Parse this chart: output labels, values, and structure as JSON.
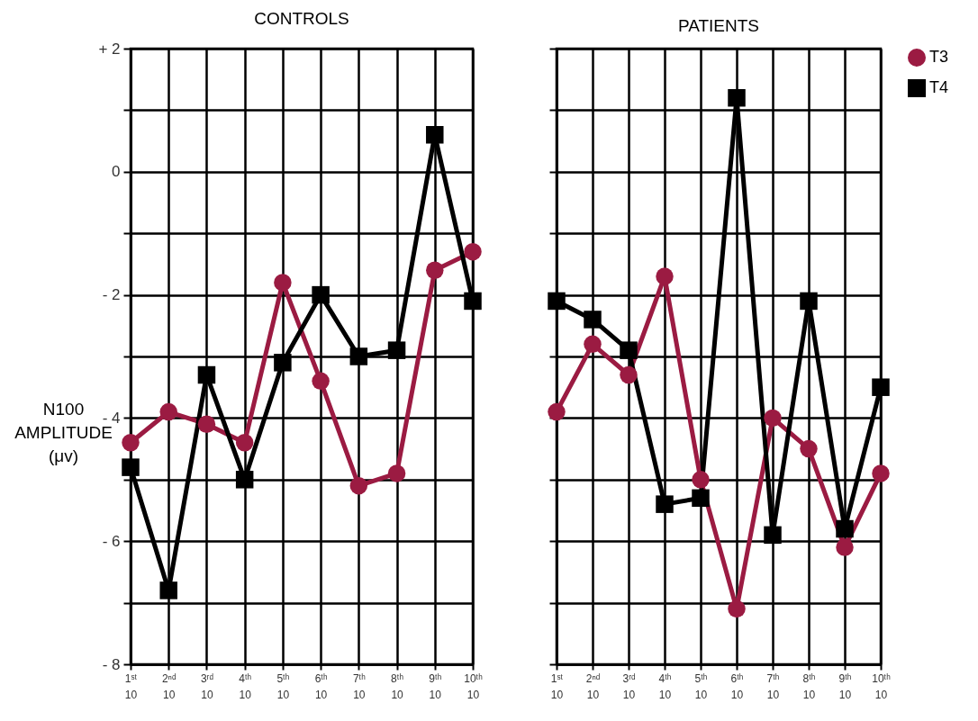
{
  "chart_data": [
    {
      "type": "line",
      "title": "CONTROLS",
      "ylabel": "N100 AMPLITUDE (μv)",
      "categories": [
        "1ˢᵗ 10",
        "2ⁿᵈ 10",
        "3ʳᵈ 10",
        "4ᵗʰ 10",
        "5ᵗʰ 10",
        "6ᵗʰ 10",
        "7ᵗʰ 10",
        "8ᵗʰ 10",
        "9ᵗʰ 10",
        "10ᵗʰ 10"
      ],
      "series": [
        {
          "name": "T3",
          "color": "#9b1b42",
          "marker": "circle",
          "values": [
            -4.4,
            -3.9,
            -4.1,
            -4.4,
            -1.8,
            -3.4,
            -5.1,
            -4.9,
            -1.6,
            -1.3
          ]
        },
        {
          "name": "T4",
          "color": "#000000",
          "marker": "square",
          "values": [
            -4.8,
            -6.8,
            -3.3,
            -5.0,
            -3.1,
            -2.0,
            -3.0,
            -2.9,
            0.6,
            -2.1
          ]
        }
      ],
      "ylim": [
        -8,
        2
      ],
      "yticks": [
        {
          "value": -8,
          "label": "- 8"
        },
        {
          "value": -7,
          "label": null
        },
        {
          "value": -6,
          "label": "- 6"
        },
        {
          "value": -5,
          "label": null
        },
        {
          "value": -4,
          "label": "- 4"
        },
        {
          "value": -3,
          "label": null
        },
        {
          "value": -2,
          "label": "- 2"
        },
        {
          "value": -1,
          "label": null
        },
        0,
        {
          "value": 1,
          "label": null
        },
        {
          "value": 2,
          "label": "+ 2"
        }
      ],
      "grid": true,
      "legend": "right"
    },
    {
      "type": "line",
      "title": "PATIENTS",
      "categories": [
        "1ˢᵗ 10",
        "2ⁿᵈ 10",
        "3ʳᵈ 10",
        "4ᵗʰ 10",
        "5ᵗʰ 10",
        "6ᵗʰ 10",
        "7ᵗʰ 10",
        "8ᵗʰ 10",
        "9ᵗʰ 10",
        "10ᵗʰ 10"
      ],
      "series": [
        {
          "name": "T3",
          "color": "#9b1b42",
          "marker": "circle",
          "values": [
            -3.9,
            -2.8,
            -3.3,
            -1.7,
            -5.0,
            -7.1,
            -4.0,
            -4.5,
            -6.1,
            -4.9
          ]
        },
        {
          "name": "T4",
          "color": "#000000",
          "marker": "square",
          "values": [
            -2.1,
            -2.4,
            -2.9,
            -5.4,
            -5.3,
            1.2,
            -5.9,
            -2.1,
            -5.8,
            -3.5
          ]
        }
      ],
      "ylim": [
        -8,
        2
      ],
      "yticks": [
        {
          "value": -8,
          "label": null
        },
        {
          "value": -7,
          "label": null
        },
        {
          "value": -6,
          "label": null
        },
        {
          "value": -5,
          "label": null
        },
        {
          "value": -4,
          "label": null
        },
        {
          "value": -3,
          "label": null
        },
        {
          "value": -2,
          "label": null
        },
        {
          "value": -1,
          "label": null
        },
        {
          "value": 0,
          "label": null
        },
        {
          "value": 1,
          "label": null
        },
        {
          "value": 2,
          "label": null
        }
      ],
      "grid": true,
      "tick_labels": "x",
      "legend": "right"
    }
  ]
}
